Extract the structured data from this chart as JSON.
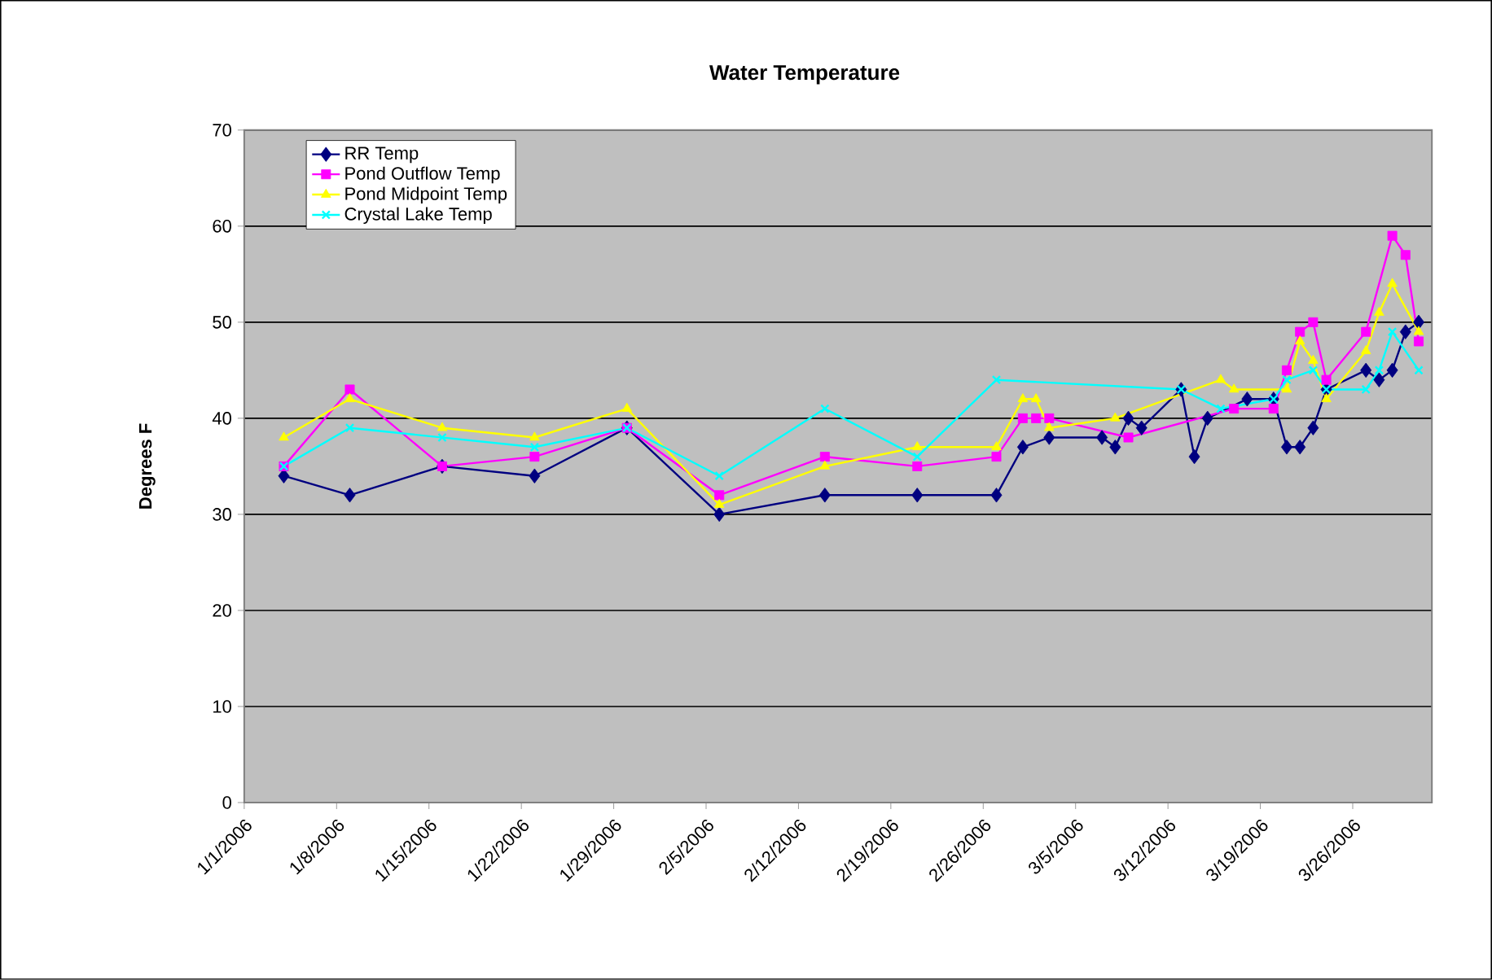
{
  "chart_data": {
    "type": "line",
    "title": "Water Temperature",
    "ylabel": "Degrees F",
    "xlim": [
      "2006-01-01",
      "2006-04-01"
    ],
    "ylim": [
      0,
      70
    ],
    "yticks": [
      0,
      10,
      20,
      30,
      40,
      50,
      60,
      70
    ],
    "xticks": [
      {
        "value": "2006-01-01",
        "label": "1/1/2006"
      },
      {
        "value": "2006-01-08",
        "label": "1/8/2006"
      },
      {
        "value": "2006-01-15",
        "label": "1/15/2006"
      },
      {
        "value": "2006-01-22",
        "label": "1/22/2006"
      },
      {
        "value": "2006-01-29",
        "label": "1/29/2006"
      },
      {
        "value": "2006-02-05",
        "label": "2/5/2006"
      },
      {
        "value": "2006-02-12",
        "label": "2/12/2006"
      },
      {
        "value": "2006-02-19",
        "label": "2/19/2006"
      },
      {
        "value": "2006-02-26",
        "label": "2/26/2006"
      },
      {
        "value": "2006-03-05",
        "label": "3/5/2006"
      },
      {
        "value": "2006-03-12",
        "label": "3/12/2006"
      },
      {
        "value": "2006-03-19",
        "label": "3/19/2006"
      },
      {
        "value": "2006-03-26",
        "label": "3/26/2006"
      }
    ],
    "grid": "y",
    "legend": "top left",
    "line_style": "solid",
    "series": [
      {
        "name": "RR Temp",
        "color": "#000080",
        "marker": "diamond",
        "x": [
          "2006-01-04",
          "2006-01-09",
          "2006-01-16",
          "2006-01-23",
          "2006-01-30",
          "2006-02-06",
          "2006-02-14",
          "2006-02-21",
          "2006-02-27",
          "2006-03-01",
          "2006-03-03",
          "2006-03-07",
          "2006-03-08",
          "2006-03-09",
          "2006-03-10",
          "2006-03-13",
          "2006-03-14",
          "2006-03-15",
          "2006-03-18",
          "2006-03-20",
          "2006-03-21",
          "2006-03-22",
          "2006-03-23",
          "2006-03-24",
          "2006-03-27",
          "2006-03-28",
          "2006-03-29",
          "2006-03-30",
          "2006-03-31"
        ],
        "values": [
          34,
          32,
          35,
          34,
          39,
          30,
          32,
          32,
          32,
          37,
          38,
          38,
          37,
          40,
          39,
          43,
          36,
          40,
          42,
          42,
          37,
          37,
          39,
          43,
          45,
          44,
          45,
          49,
          50
        ]
      },
      {
        "name": "Pond Outflow Temp",
        "color": "#ff00ff",
        "marker": "square",
        "x": [
          "2006-01-04",
          "2006-01-09",
          "2006-01-16",
          "2006-01-23",
          "2006-01-30",
          "2006-02-06",
          "2006-02-14",
          "2006-02-21",
          "2006-02-27",
          "2006-03-01",
          "2006-03-02",
          "2006-03-03",
          "2006-03-09",
          "2006-03-17",
          "2006-03-20",
          "2006-03-21",
          "2006-03-22",
          "2006-03-23",
          "2006-03-24",
          "2006-03-27",
          "2006-03-29",
          "2006-03-30",
          "2006-03-31"
        ],
        "values": [
          35,
          43,
          35,
          36,
          39,
          32,
          36,
          35,
          36,
          40,
          40,
          40,
          38,
          41,
          41,
          45,
          49,
          50,
          44,
          49,
          59,
          57,
          48
        ]
      },
      {
        "name": "Pond Midpoint Temp",
        "color": "#ffff00",
        "marker": "triangle",
        "x": [
          "2006-01-04",
          "2006-01-09",
          "2006-01-16",
          "2006-01-23",
          "2006-01-30",
          "2006-02-06",
          "2006-02-14",
          "2006-02-21",
          "2006-02-27",
          "2006-03-01",
          "2006-03-02",
          "2006-03-03",
          "2006-03-08",
          "2006-03-16",
          "2006-03-17",
          "2006-03-21",
          "2006-03-22",
          "2006-03-23",
          "2006-03-24",
          "2006-03-27",
          "2006-03-28",
          "2006-03-29",
          "2006-03-31"
        ],
        "values": [
          38,
          42,
          39,
          38,
          41,
          31,
          35,
          37,
          37,
          42,
          42,
          39,
          40,
          44,
          43,
          43,
          48,
          46,
          42,
          47,
          51,
          54,
          49
        ]
      },
      {
        "name": "Crystal Lake Temp",
        "color": "#00ffff",
        "marker": "cross",
        "x": [
          "2006-01-04",
          "2006-01-09",
          "2006-01-16",
          "2006-01-23",
          "2006-01-30",
          "2006-02-06",
          "2006-02-14",
          "2006-02-21",
          "2006-02-27",
          "2006-03-13",
          "2006-03-16",
          "2006-03-20",
          "2006-03-21",
          "2006-03-23",
          "2006-03-24",
          "2006-03-27",
          "2006-03-28",
          "2006-03-29",
          "2006-03-31"
        ],
        "values": [
          35,
          39,
          38,
          37,
          39,
          34,
          41,
          36,
          44,
          43,
          41,
          42,
          44,
          45,
          43,
          43,
          45,
          49,
          45
        ]
      }
    ]
  }
}
